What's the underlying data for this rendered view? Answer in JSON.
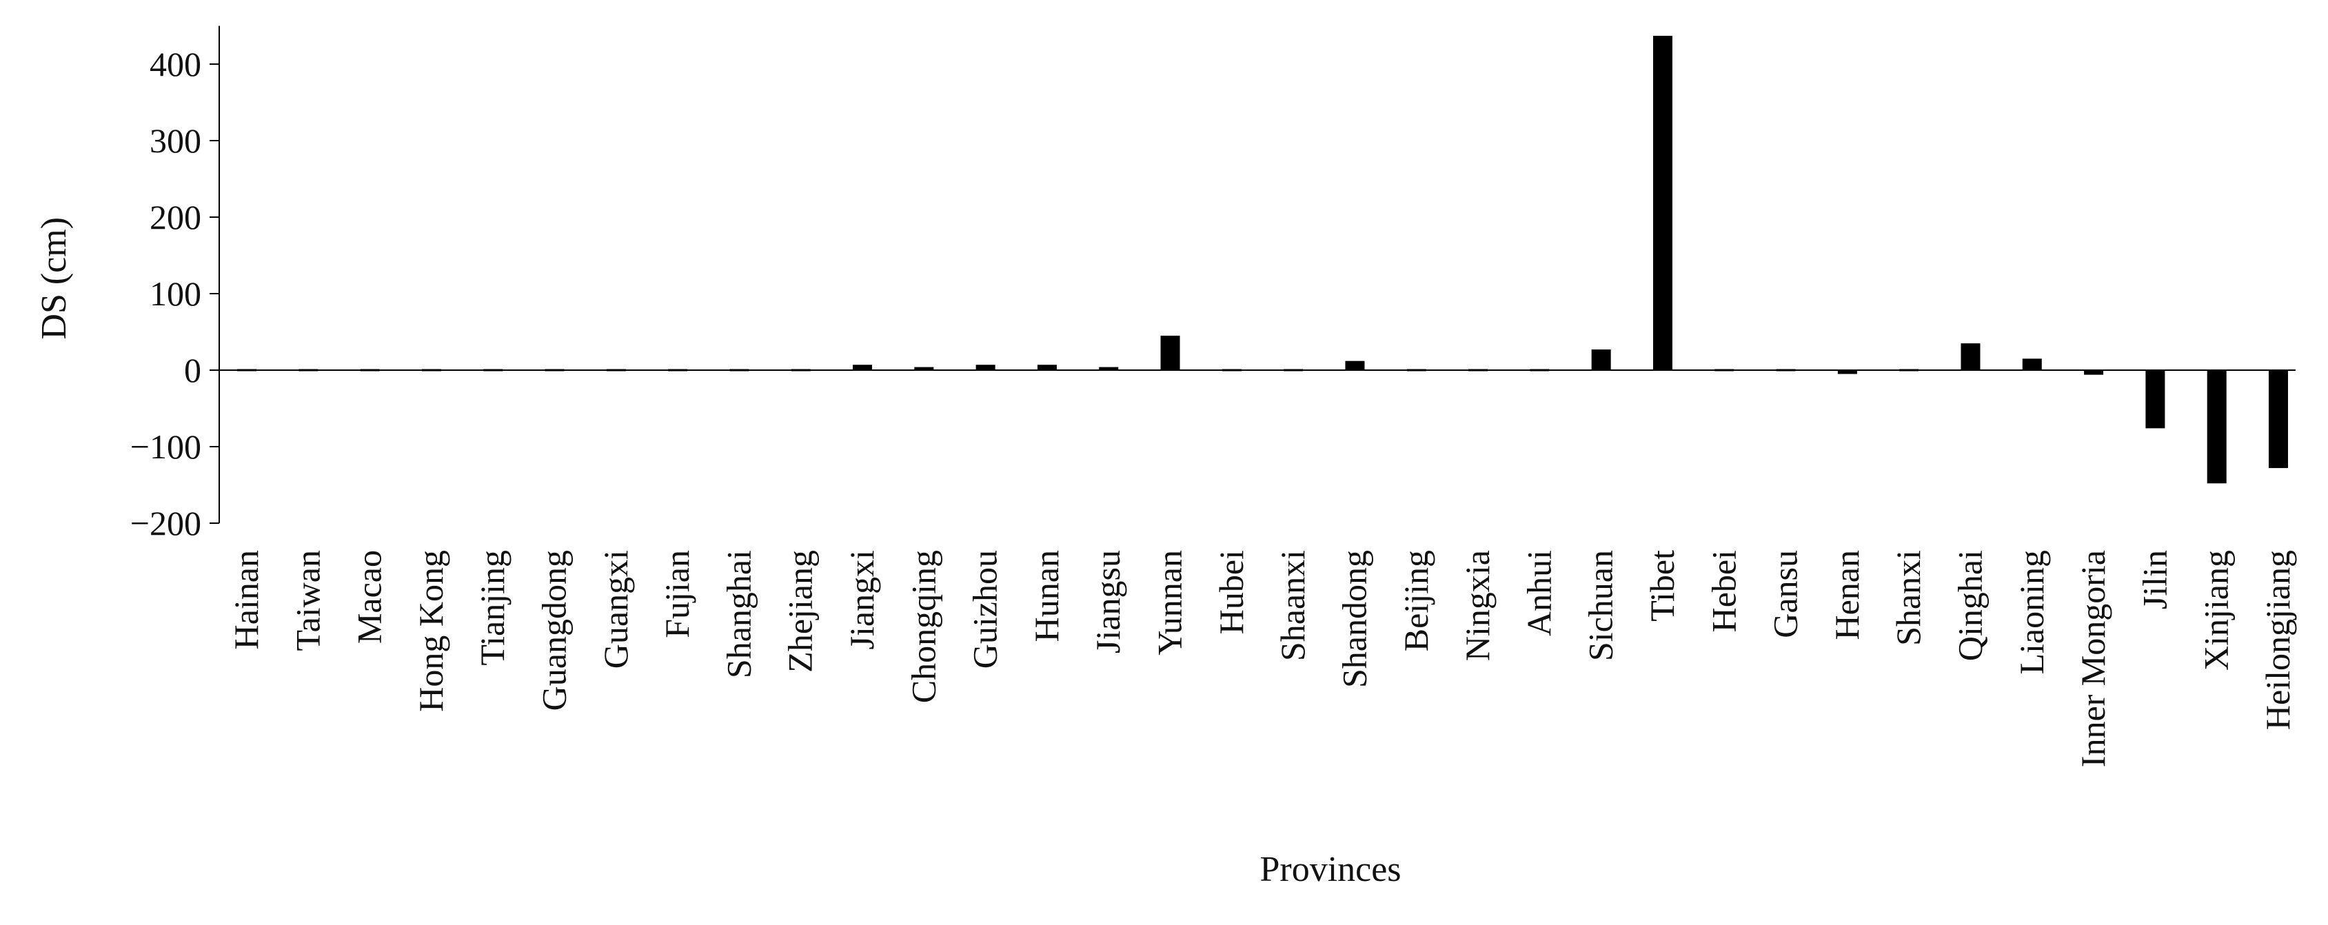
{
  "chart_data": {
    "type": "bar",
    "title": "",
    "xlabel": "Provinces",
    "ylabel": "DS (cm)",
    "ylim": [
      -200,
      450
    ],
    "yticks": [
      -200,
      -100,
      0,
      100,
      200,
      300,
      400
    ],
    "ytick_labels": [
      "−200",
      "−100",
      "0",
      "100",
      "200",
      "300",
      "400"
    ],
    "grid": false,
    "legend": "none",
    "bar_color": "#000000",
    "categories": [
      "Hainan",
      "Taiwan",
      "Macao",
      "Hong Kong",
      "Tianjing",
      "Guangdong",
      "Guangxi",
      "Fujian",
      "Shanghai",
      "Zhejiang",
      "Jiangxi",
      "Chongqing",
      "Guizhou",
      "Hunan",
      "Jiangsu",
      "Yunnan",
      "Hubei",
      "Shaanxi",
      "Shandong",
      "Beijing",
      "Ningxia",
      "Anhui",
      "Sichuan",
      "Tibet",
      "Hebei",
      "Gansu",
      "Henan",
      "Shanxi",
      "Qinghai",
      "Liaoning",
      "Inner Mongoria",
      "Jilin",
      "Xinjiang",
      "Heilongjiang"
    ],
    "values": [
      0,
      0,
      0,
      0,
      0,
      1,
      1,
      1,
      1,
      1,
      7,
      4,
      7,
      7,
      4,
      45,
      1,
      0,
      12,
      -2,
      -2,
      1,
      27,
      437,
      1,
      0,
      -5,
      1,
      35,
      15,
      -6,
      -76,
      -148,
      -128
    ]
  }
}
